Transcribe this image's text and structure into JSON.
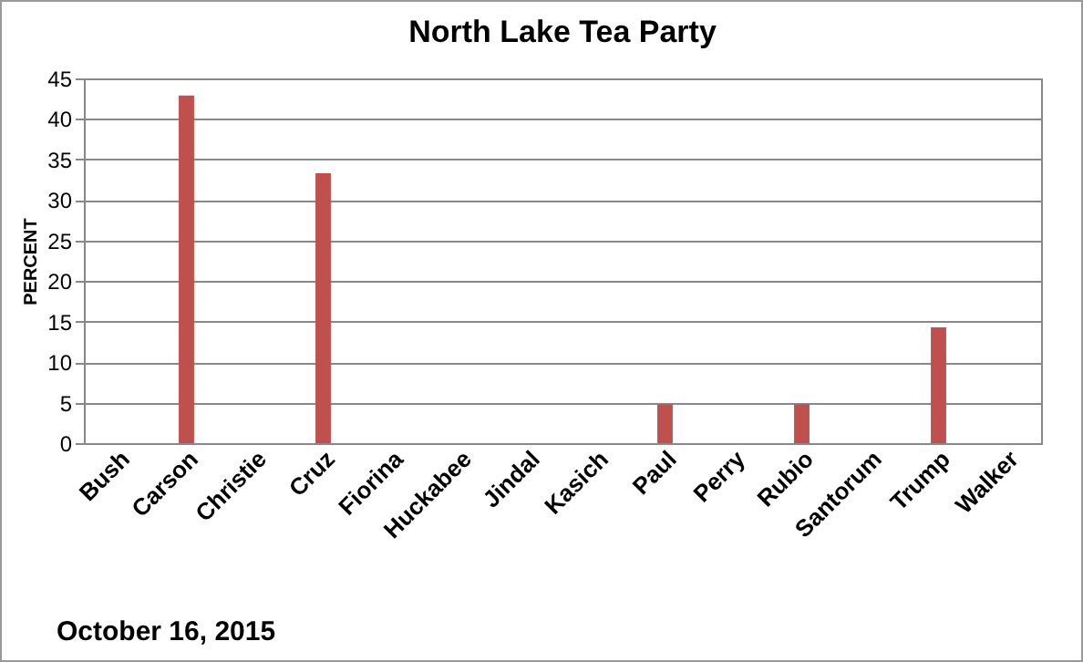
{
  "chart_data": {
    "type": "bar",
    "title": "North Lake Tea Party",
    "ylabel": "PERCENT",
    "categories": [
      "Bush",
      "Carson",
      "Christie",
      "Cruz",
      "Fiorina",
      "Huckabee",
      "Jindal",
      "Kasich",
      "Paul",
      "Perry",
      "Rubio",
      "Santorum",
      "Trump",
      "Walker"
    ],
    "values": [
      0,
      42.9,
      0,
      33.3,
      0,
      0,
      0,
      0,
      4.8,
      0,
      4.8,
      0,
      14.3,
      0
    ],
    "color": "#c0504d",
    "ylim": [
      0,
      45
    ],
    "yticks": [
      0,
      5,
      10,
      15,
      20,
      25,
      30,
      35,
      40,
      45
    ],
    "grid": "y",
    "annotations": [
      "October 16, 2015"
    ]
  }
}
